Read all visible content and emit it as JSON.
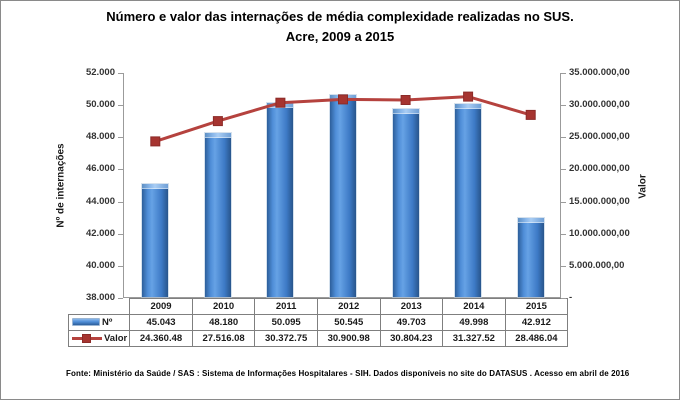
{
  "title": {
    "line1": "Número e valor das internações de média complexidade realizadas no SUS.",
    "line2": "Acre, 2009 a 2015"
  },
  "footer": "Fonte: Ministério da Saúde / SAS : Sistema de Informações Hospitalares - SIH. Dados disponíveis no site do DATASUS . Acesso em abril de 2016",
  "colors": {
    "bar_fill": "#3E7CC1",
    "bar_light": "#66A2E5",
    "bar_dark": "#2B5C95",
    "line": "#B5423E",
    "marker_fill": "#A63430",
    "marker_border": "#8C2B28",
    "axis_line": "#9B9B9B",
    "table_border": "#7F7F7F"
  },
  "chart_data": {
    "type": "combo-bar-line",
    "title": "Número e valor das internações de média complexidade realizadas no SUS. Acre, 2009 a 2015",
    "categories": [
      "2009",
      "2010",
      "2011",
      "2012",
      "2013",
      "2014",
      "2015"
    ],
    "series": [
      {
        "name": "Nº",
        "type": "bar",
        "axis": "left",
        "values": [
          45043,
          48180,
          50095,
          50545,
          49703,
          49998,
          42912
        ],
        "labels": [
          "45.043",
          "48.180",
          "50.095",
          "50.545",
          "49.703",
          "49.998",
          "42.912"
        ]
      },
      {
        "name": "Valor",
        "type": "line",
        "axis": "right",
        "values": [
          24360480,
          27516080,
          30372750,
          30900980,
          30804230,
          31327520,
          28486040
        ],
        "labels": [
          "24.360.48",
          "27.516.08",
          "30.372.75",
          "30.900.98",
          "30.804.23",
          "31.327.52",
          "28.486.04"
        ]
      }
    ],
    "left_axis": {
      "title": "Nº de internações",
      "min": 38000,
      "max": 52000,
      "tick_labels": [
        "52.000",
        "50.000",
        "48.000",
        "46.000",
        "44.000",
        "42.000",
        "40.000",
        "38.000"
      ]
    },
    "right_axis": {
      "title": "Valor",
      "min": 0,
      "max": 35000000,
      "tick_labels": [
        "35.000.000,00",
        "30.000.000,00",
        "25.000.000,00",
        "20.000.000,00",
        "15.000.000,00",
        "10.000.000,00",
        "5.000.000,00",
        "-"
      ]
    },
    "grid": false,
    "legend_position": "data-table-bottom"
  }
}
